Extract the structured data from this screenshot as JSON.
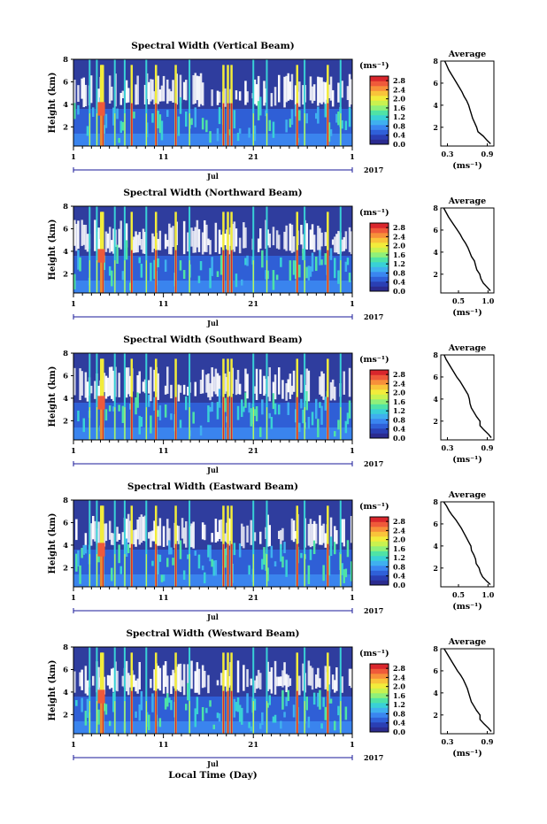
{
  "figure": {
    "colorbar_unit": "(ms⁻¹)",
    "x_month_label": "Jul",
    "x_year_label": "2017",
    "x_axis_title": "Local Time (Day)",
    "y_axis_title": "Height (km)",
    "avg_title": "Average",
    "avg_unit": "(ms⁻¹)"
  },
  "colormap": [
    "#2b2b8f",
    "#2a3fb4",
    "#2f60d8",
    "#3a86f0",
    "#3fb0ef",
    "#39d1d6",
    "#4fe3a6",
    "#8ff07a",
    "#c9f24f",
    "#f2ec3b",
    "#f9c43a",
    "#f7903a",
    "#ef5a3a",
    "#d9262c"
  ],
  "chart_data": [
    {
      "type": "heatmap",
      "title": "Spectral Width (Vertical Beam)",
      "x_tick_labels": [
        "1",
        "11",
        "21",
        "1"
      ],
      "x_day_range": [
        1,
        32
      ],
      "ylabel": "Height (km)",
      "y_tick_labels": [
        "2",
        "4",
        "6",
        "8"
      ],
      "ylim": [
        0.3,
        8
      ],
      "colorbar_ticks": [
        "0.0",
        "0.4",
        "0.8",
        "1.2",
        "1.6",
        "2.0",
        "2.4",
        "2.8"
      ],
      "colorbar_range": [
        0,
        3.0
      ],
      "average_profile": {
        "xlabel": "(ms⁻¹)",
        "x_tick_labels": [
          "0.3",
          "0.9"
        ],
        "xlim": [
          0.2,
          1.0
        ],
        "y_tick_labels": [
          "2",
          "4",
          "6",
          "8"
        ],
        "ylim": [
          0.3,
          8
        ],
        "heights": [
          8.0,
          7.6,
          7.2,
          6.8,
          6.4,
          6.0,
          5.6,
          5.2,
          4.8,
          4.4,
          4.0,
          3.6,
          3.2,
          2.8,
          2.4,
          2.0,
          1.6,
          1.2,
          0.8,
          0.5
        ],
        "values": [
          0.26,
          0.29,
          0.32,
          0.36,
          0.4,
          0.44,
          0.48,
          0.52,
          0.55,
          0.59,
          0.62,
          0.64,
          0.66,
          0.68,
          0.71,
          0.74,
          0.76,
          0.84,
          0.9,
          0.95
        ]
      }
    },
    {
      "type": "heatmap",
      "title": "Spectral Width (Northward Beam)",
      "x_tick_labels": [
        "1",
        "11",
        "21",
        "1"
      ],
      "x_day_range": [
        1,
        32
      ],
      "ylabel": "Height (km)",
      "y_tick_labels": [
        "2",
        "4",
        "6",
        "8"
      ],
      "ylim": [
        0.3,
        8
      ],
      "colorbar_ticks": [
        "0.0",
        "0.4",
        "0.8",
        "1.2",
        "1.6",
        "2.0",
        "2.4",
        "2.8"
      ],
      "colorbar_range": [
        0,
        3.0
      ],
      "average_profile": {
        "xlabel": "(ms⁻¹)",
        "x_tick_labels": [
          "0.5",
          "1.0"
        ],
        "xlim": [
          0.2,
          1.1
        ],
        "y_tick_labels": [
          "2",
          "4",
          "6",
          "8"
        ],
        "ylim": [
          0.3,
          8
        ],
        "heights": [
          8.0,
          7.6,
          7.2,
          6.8,
          6.4,
          6.0,
          5.6,
          5.2,
          4.8,
          4.4,
          4.0,
          3.6,
          3.2,
          2.8,
          2.4,
          2.0,
          1.6,
          1.2,
          0.8,
          0.5
        ],
        "values": [
          0.25,
          0.29,
          0.33,
          0.38,
          0.43,
          0.48,
          0.53,
          0.57,
          0.62,
          0.66,
          0.69,
          0.72,
          0.77,
          0.79,
          0.81,
          0.86,
          0.88,
          0.92,
          0.99,
          1.04
        ]
      }
    },
    {
      "type": "heatmap",
      "title": "Spectral Width (Southward Beam)",
      "x_tick_labels": [
        "1",
        "11",
        "21",
        "1"
      ],
      "x_day_range": [
        1,
        32
      ],
      "ylabel": "Height (km)",
      "y_tick_labels": [
        "2",
        "4",
        "6",
        "8"
      ],
      "ylim": [
        0.3,
        8
      ],
      "colorbar_ticks": [
        "0.0",
        "0.4",
        "0.8",
        "1.2",
        "1.6",
        "2.0",
        "2.4",
        "2.8"
      ],
      "colorbar_range": [
        0,
        3.0
      ],
      "average_profile": {
        "xlabel": "(ms⁻¹)",
        "x_tick_labels": [
          "0.3",
          "0.9"
        ],
        "xlim": [
          0.2,
          1.0
        ],
        "y_tick_labels": [
          "2",
          "4",
          "6",
          "8"
        ],
        "ylim": [
          0.3,
          8
        ],
        "heights": [
          8.0,
          7.6,
          7.2,
          6.8,
          6.4,
          6.0,
          5.6,
          5.2,
          4.8,
          4.4,
          4.0,
          3.6,
          3.2,
          2.8,
          2.4,
          2.0,
          1.6,
          1.2,
          0.8,
          0.5
        ],
        "values": [
          0.25,
          0.28,
          0.32,
          0.36,
          0.4,
          0.44,
          0.49,
          0.53,
          0.57,
          0.61,
          0.63,
          0.64,
          0.66,
          0.7,
          0.74,
          0.79,
          0.79,
          0.85,
          0.92,
          0.96
        ]
      }
    },
    {
      "type": "heatmap",
      "title": "Spectral Width (Eastward Beam)",
      "x_tick_labels": [
        "1",
        "11",
        "21",
        "1"
      ],
      "x_day_range": [
        1,
        32
      ],
      "ylabel": "Height (km)",
      "y_tick_labels": [
        "2",
        "4",
        "6",
        "8"
      ],
      "ylim": [
        0.3,
        8
      ],
      "colorbar_ticks": [
        "0.0",
        "0.4",
        "0.8",
        "1.2",
        "1.6",
        "2.0",
        "2.4",
        "2.8"
      ],
      "colorbar_range": [
        0,
        3.0
      ],
      "average_profile": {
        "xlabel": "(ms⁻¹)",
        "x_tick_labels": [
          "0.5",
          "1.0"
        ],
        "xlim": [
          0.2,
          1.1
        ],
        "y_tick_labels": [
          "2",
          "4",
          "6",
          "8"
        ],
        "ylim": [
          0.3,
          8
        ],
        "heights": [
          8.0,
          7.6,
          7.2,
          6.8,
          6.4,
          6.0,
          5.6,
          5.2,
          4.8,
          4.4,
          4.0,
          3.6,
          3.2,
          2.8,
          2.4,
          2.0,
          1.6,
          1.2,
          0.8,
          0.5
        ],
        "values": [
          0.25,
          0.3,
          0.34,
          0.39,
          0.45,
          0.5,
          0.55,
          0.59,
          0.63,
          0.67,
          0.71,
          0.72,
          0.76,
          0.79,
          0.8,
          0.85,
          0.87,
          0.91,
          0.98,
          1.04
        ]
      }
    },
    {
      "type": "heatmap",
      "title": "Spectral Width (Westward Beam)",
      "x_tick_labels": [
        "1",
        "11",
        "21",
        "1"
      ],
      "x_day_range": [
        1,
        32
      ],
      "ylabel": "Height (km)",
      "y_tick_labels": [
        "2",
        "4",
        "6",
        "8"
      ],
      "ylim": [
        0.3,
        8
      ],
      "colorbar_ticks": [
        "0.0",
        "0.4",
        "0.8",
        "1.2",
        "1.6",
        "2.0",
        "2.4",
        "2.8"
      ],
      "colorbar_range": [
        0,
        3.0
      ],
      "average_profile": {
        "xlabel": "(ms⁻¹)",
        "x_tick_labels": [
          "0.3",
          "0.9"
        ],
        "xlim": [
          0.2,
          1.0
        ],
        "y_tick_labels": [
          "2",
          "4",
          "6",
          "8"
        ],
        "ylim": [
          0.3,
          8
        ],
        "heights": [
          8.0,
          7.6,
          7.2,
          6.8,
          6.4,
          6.0,
          5.6,
          5.2,
          4.8,
          4.4,
          4.0,
          3.6,
          3.2,
          2.8,
          2.4,
          2.0,
          1.6,
          1.2,
          0.8,
          0.5
        ],
        "values": [
          0.25,
          0.29,
          0.33,
          0.37,
          0.41,
          0.45,
          0.5,
          0.54,
          0.57,
          0.6,
          0.62,
          0.64,
          0.66,
          0.7,
          0.74,
          0.79,
          0.79,
          0.85,
          0.92,
          0.96
        ]
      }
    }
  ]
}
